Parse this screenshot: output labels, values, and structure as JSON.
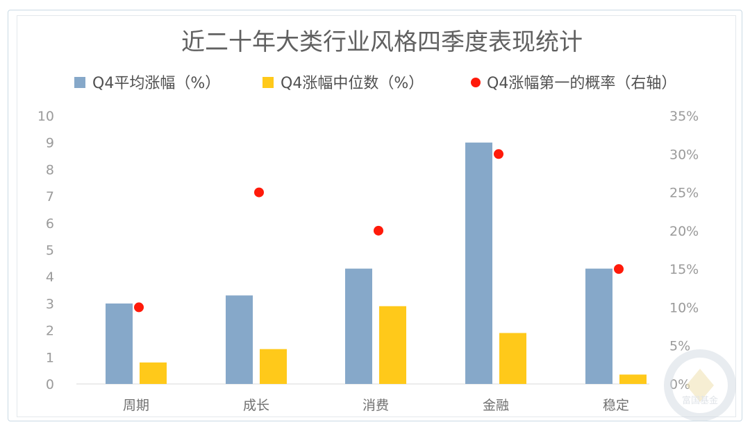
{
  "colors": {
    "bar_avg": "#86a8c9",
    "bar_median": "#ffc91a",
    "dot_prob": "#ff1a0a",
    "axis_text": "#9a9a9a",
    "title_text": "#606060",
    "legend_text": "#505050",
    "watermark": "#d6dde4"
  },
  "watermark": {
    "text": "富国基金"
  },
  "chart_data": {
    "type": "bar",
    "title": "近二十年大类行业风格四季度表现统计",
    "categories": [
      "周期",
      "成长",
      "消费",
      "金融",
      "稳定"
    ],
    "series": [
      {
        "name": "Q4平均涨幅（%）",
        "type": "bar",
        "axis": "left",
        "values": [
          3.0,
          3.3,
          4.3,
          9.0,
          4.3
        ]
      },
      {
        "name": "Q4涨幅中位数（%）",
        "type": "bar",
        "axis": "left",
        "values": [
          0.8,
          1.3,
          2.9,
          1.9,
          0.35
        ]
      },
      {
        "name": "Q4涨幅第一的概率（右轴）",
        "type": "scatter",
        "axis": "right",
        "values": [
          0.1,
          0.25,
          0.2,
          0.3,
          0.15
        ]
      }
    ],
    "y_left": {
      "ylim": [
        0,
        10
      ],
      "ticks": [
        "0",
        "1",
        "2",
        "3",
        "4",
        "5",
        "6",
        "7",
        "8",
        "9",
        "10"
      ]
    },
    "y_right": {
      "ylim": [
        0,
        0.35
      ],
      "ticks": [
        "0%",
        "5%",
        "10%",
        "15%",
        "20%",
        "25%",
        "30%",
        "35%"
      ]
    },
    "grid": false,
    "legend_position": "top"
  }
}
